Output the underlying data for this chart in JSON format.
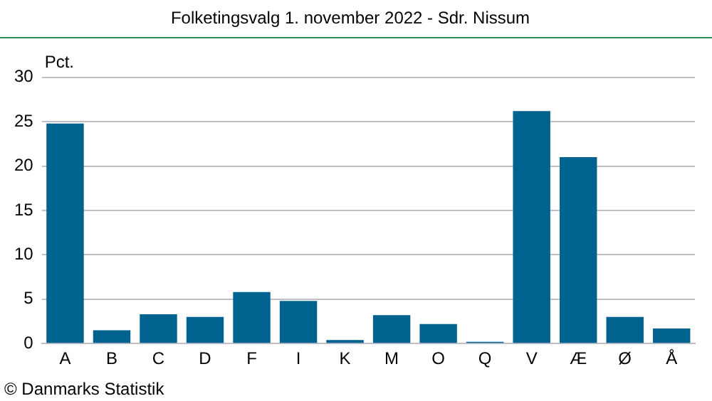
{
  "chart_data": {
    "type": "bar",
    "title": "Folketingsvalg 1. november 2022 - Sdr. Nissum",
    "ylabel": "Pct.",
    "categories": [
      "A",
      "B",
      "C",
      "D",
      "F",
      "I",
      "K",
      "M",
      "O",
      "Q",
      "V",
      "Æ",
      "Ø",
      "Å"
    ],
    "values": [
      24.8,
      1.5,
      3.3,
      3.0,
      5.8,
      4.8,
      0.4,
      3.2,
      2.2,
      0.2,
      26.2,
      21.0,
      3.0,
      1.7
    ],
    "color": "#00628f",
    "ylim": [
      0,
      30
    ],
    "yticks": [
      0,
      5,
      10,
      15,
      20,
      25,
      30
    ],
    "grid": "y",
    "annotations": [
      "© Danmarks Statistik"
    ]
  }
}
